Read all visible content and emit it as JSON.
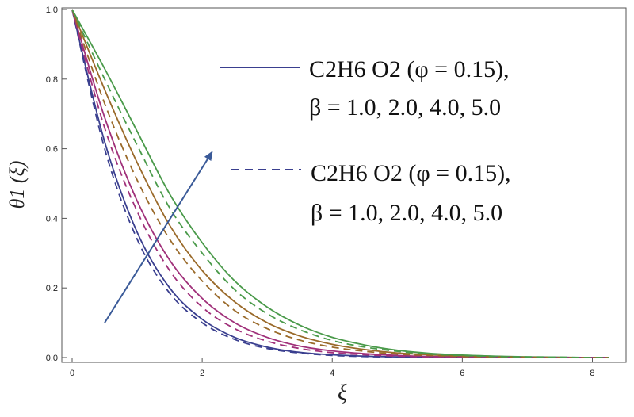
{
  "chart_data": {
    "type": "line",
    "xlabel": "ξ",
    "ylabel": "θ1 (ξ)",
    "xlim": [
      0,
      8.25
    ],
    "ylim": [
      0,
      1.0
    ],
    "x_ticks": [
      "0",
      "2",
      "4",
      "6",
      "8"
    ],
    "y_ticks": [
      "0.0",
      "0.2",
      "0.4",
      "0.6",
      "0.8",
      "1.0"
    ],
    "grid": false,
    "legend_placement": "top-right",
    "legend": [
      {
        "style": "solid",
        "line1": "C2H6 O2 (φ = 0.15),",
        "line2": "β = 1.0, 2.0, 4.0, 5.0"
      },
      {
        "style": "dashed",
        "line1": "C2H6 O2 (φ = 0.15),",
        "line2": "β = 1.0, 2.0, 4.0, 5.0"
      }
    ],
    "x": [
      0,
      0.5,
      1,
      1.5,
      2,
      2.5,
      3,
      3.5,
      4,
      4.5,
      5,
      5.5,
      6,
      6.5,
      7,
      7.5,
      8,
      8.25
    ],
    "series": [
      {
        "color": "#3a3f8f",
        "style": "solid",
        "values": [
          1.0,
          0.62,
          0.36,
          0.2,
          0.11,
          0.058,
          0.03,
          0.015,
          0.008,
          0.004,
          0.002,
          0.001,
          0,
          0,
          0,
          0,
          0,
          0
        ]
      },
      {
        "color": "#a0307a",
        "style": "solid",
        "values": [
          1.0,
          0.69,
          0.45,
          0.28,
          0.17,
          0.1,
          0.058,
          0.033,
          0.019,
          0.011,
          0.006,
          0.003,
          0.002,
          0.001,
          0,
          0,
          0,
          0
        ]
      },
      {
        "color": "#9a6a2a",
        "style": "solid",
        "values": [
          1.0,
          0.77,
          0.56,
          0.38,
          0.25,
          0.16,
          0.1,
          0.062,
          0.038,
          0.023,
          0.013,
          0.008,
          0.004,
          0.002,
          0.001,
          0,
          0,
          0
        ]
      },
      {
        "color": "#4a9a4a",
        "style": "solid",
        "values": [
          1.0,
          0.83,
          0.65,
          0.47,
          0.33,
          0.22,
          0.145,
          0.093,
          0.058,
          0.036,
          0.021,
          0.012,
          0.007,
          0.004,
          0.002,
          0.001,
          0,
          0
        ]
      },
      {
        "color": "#3a3f8f",
        "style": "dashed",
        "values": [
          1.0,
          0.6,
          0.34,
          0.185,
          0.1,
          0.052,
          0.026,
          0.013,
          0.006,
          0.003,
          0.001,
          0,
          0,
          0,
          0,
          0,
          0,
          0
        ]
      },
      {
        "color": "#a0307a",
        "style": "dashed",
        "values": [
          1.0,
          0.66,
          0.42,
          0.25,
          0.145,
          0.083,
          0.047,
          0.026,
          0.014,
          0.008,
          0.004,
          0.002,
          0.001,
          0,
          0,
          0,
          0,
          0
        ]
      },
      {
        "color": "#9a6a2a",
        "style": "dashed",
        "values": [
          1.0,
          0.73,
          0.51,
          0.34,
          0.22,
          0.135,
          0.083,
          0.05,
          0.03,
          0.018,
          0.01,
          0.006,
          0.003,
          0.002,
          0.001,
          0,
          0,
          0
        ]
      },
      {
        "color": "#4a9a4a",
        "style": "dashed",
        "values": [
          1.0,
          0.8,
          0.61,
          0.43,
          0.3,
          0.195,
          0.126,
          0.08,
          0.049,
          0.03,
          0.018,
          0.01,
          0.006,
          0.003,
          0.002,
          0.001,
          0,
          0
        ]
      }
    ],
    "annotation_arrow": {
      "from": [
        0.5,
        0.1
      ],
      "to": [
        2.15,
        0.59
      ],
      "color": "#3a5a98"
    }
  }
}
